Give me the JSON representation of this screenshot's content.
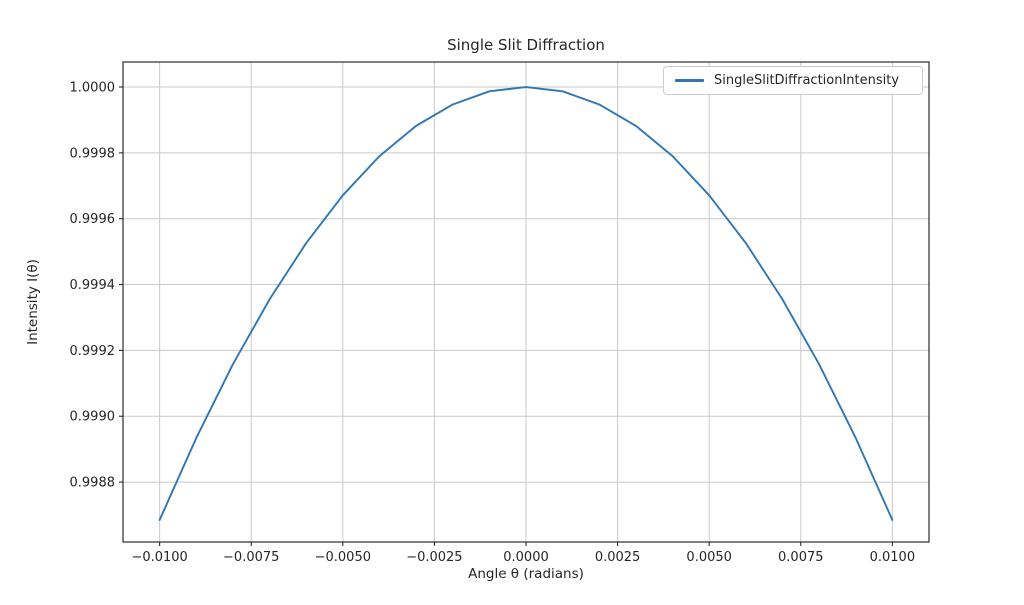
{
  "chart_data": {
    "type": "line",
    "title": "Single Slit Diffraction",
    "xlabel": "Angle θ (radians)",
    "ylabel": "Intensity I(θ)",
    "grid": true,
    "legend": {
      "position": "upper right",
      "entries": [
        {
          "label": "SingleSlitDiffractionIntensity",
          "color": "#2f76b2"
        }
      ]
    },
    "xlim": [
      -0.011,
      0.011
    ],
    "ylim": [
      0.998618,
      1.000076
    ],
    "xticks": [
      -0.01,
      -0.0075,
      -0.005,
      -0.0025,
      0.0,
      0.0025,
      0.005,
      0.0075,
      0.01
    ],
    "xtick_labels": [
      "−0.0100",
      "−0.0075",
      "−0.0050",
      "−0.0025",
      "0.0000",
      "0.0025",
      "0.0050",
      "0.0075",
      "0.0100"
    ],
    "yticks": [
      0.9988,
      0.999,
      0.9992,
      0.9994,
      0.9996,
      0.9998,
      1.0
    ],
    "ytick_labels": [
      "0.9988",
      "0.9990",
      "0.9992",
      "0.9994",
      "0.9996",
      "0.9998",
      "1.0000"
    ],
    "x": [
      -0.01,
      -0.009,
      -0.008,
      -0.007,
      -0.006,
      -0.005,
      -0.004,
      -0.003,
      -0.002,
      -0.001,
      0.0,
      0.001,
      0.002,
      0.003,
      0.004,
      0.005,
      0.006,
      0.007,
      0.008,
      0.009,
      0.01
    ],
    "series": [
      {
        "name": "SingleSlitDiffractionIntensity",
        "color": "#2f76b2",
        "values": [
          0.998685,
          0.998934,
          0.999158,
          0.999355,
          0.999526,
          0.999671,
          0.99979,
          0.999882,
          0.999947,
          0.999987,
          1.0,
          0.999987,
          0.999947,
          0.999882,
          0.99979,
          0.999671,
          0.999526,
          0.999355,
          0.999158,
          0.998934,
          0.998685
        ]
      }
    ],
    "colors": {
      "line": "#2f76b2",
      "grid": "#c9c9c9",
      "frame": "#2b2b2b",
      "text": "#262626",
      "legend_border": "#cccccc",
      "background": "#ffffff"
    }
  }
}
